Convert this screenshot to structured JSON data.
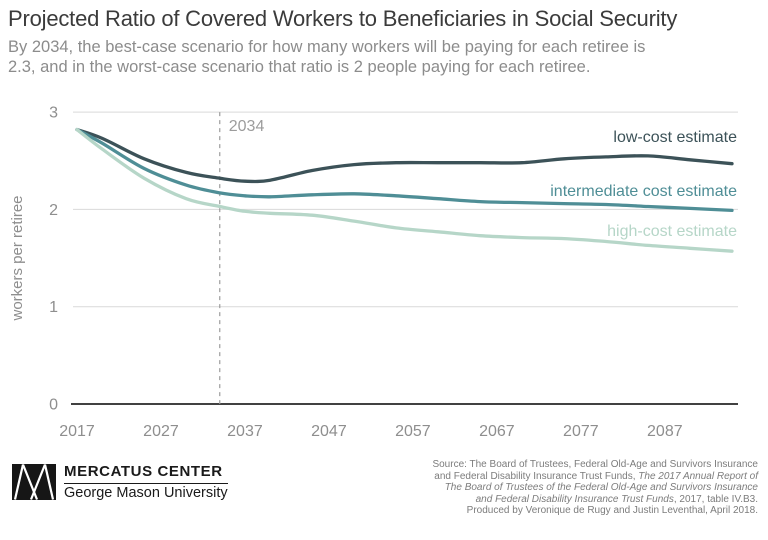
{
  "title": "Projected Ratio of Covered Workers to Beneficiaries in Social Security",
  "subtitle_line1": "By 2034, the best-case scenario for how many workers will be paying for each retiree is",
  "subtitle_line2": "2.3, and in the worst-case scenario that ratio is 2 people paying for each retiree.",
  "chart_data": {
    "type": "line",
    "title": "Projected Ratio of Covered Workers to Beneficiaries in Social Security",
    "xlabel": "",
    "ylabel": "workers per retiree",
    "xlim": [
      2017,
      2095
    ],
    "ylim": [
      0,
      3
    ],
    "xticks": [
      2017,
      2027,
      2037,
      2047,
      2057,
      2067,
      2077,
      2087
    ],
    "yticks": [
      0,
      1,
      2,
      3
    ],
    "grid": "horizontal",
    "legend_position": "inline-right",
    "annotation": {
      "x": 2034,
      "label": "2034",
      "style": "dashed-vertical-line"
    },
    "x": [
      2017,
      2020,
      2025,
      2030,
      2034,
      2037,
      2040,
      2045,
      2050,
      2055,
      2060,
      2065,
      2070,
      2075,
      2080,
      2085,
      2090,
      2095
    ],
    "series": [
      {
        "name": "low-cost estimate",
        "color": "#3c5258",
        "values": [
          2.82,
          2.73,
          2.52,
          2.38,
          2.32,
          2.29,
          2.3,
          2.4,
          2.46,
          2.48,
          2.48,
          2.48,
          2.48,
          2.52,
          2.54,
          2.55,
          2.51,
          2.47
        ]
      },
      {
        "name": "intermediate cost estimate",
        "color": "#4f8e96",
        "values": [
          2.82,
          2.68,
          2.42,
          2.25,
          2.17,
          2.14,
          2.13,
          2.15,
          2.16,
          2.14,
          2.11,
          2.08,
          2.07,
          2.06,
          2.05,
          2.03,
          2.01,
          1.99
        ]
      },
      {
        "name": "high-cost estimate",
        "color": "#b6d6c8",
        "values": [
          2.82,
          2.62,
          2.32,
          2.11,
          2.03,
          1.98,
          1.96,
          1.94,
          1.88,
          1.81,
          1.77,
          1.73,
          1.71,
          1.7,
          1.67,
          1.63,
          1.6,
          1.57
        ]
      }
    ]
  },
  "colors": {
    "background": "#ffffff",
    "title_text": "#3b3b3b",
    "subtitle_text": "#8c8c8c",
    "grid": "#d9d9d9",
    "axis": "#414141",
    "tick_text": "#8e8e8e",
    "annotation_text": "#9c9c9c",
    "low_cost": "#3c5258",
    "intermediate_cost": "#4f8e96",
    "high_cost": "#b6d6c8",
    "footer_text": "#1a1a1a",
    "source_text": "#7c7c7c"
  },
  "footer": {
    "brand_name": "MERCATUS CENTER",
    "brand_sub": "George Mason University",
    "logo": "mercatus-mm-mark",
    "source_lines": [
      [
        {
          "t": "Source: The Board of Trustees, Federal Old-Age and Survivors Insurance",
          "i": false
        }
      ],
      [
        {
          "t": "and Federal Disability Insurance Trust Funds, ",
          "i": false
        },
        {
          "t": "The 2017 Annual Report of",
          "i": true
        }
      ],
      [
        {
          "t": "The Board of Trustees of the Federal Old-Age and Survivors Insurance",
          "i": true
        }
      ],
      [
        {
          "t": "and Federal Disability Insurance Trust Funds",
          "i": true
        },
        {
          "t": ", 2017, table IV.B3.",
          "i": false
        }
      ],
      [
        {
          "t": "Produced by Veronique de Rugy and Justin Leventhal, April 2018.",
          "i": false
        }
      ]
    ]
  }
}
